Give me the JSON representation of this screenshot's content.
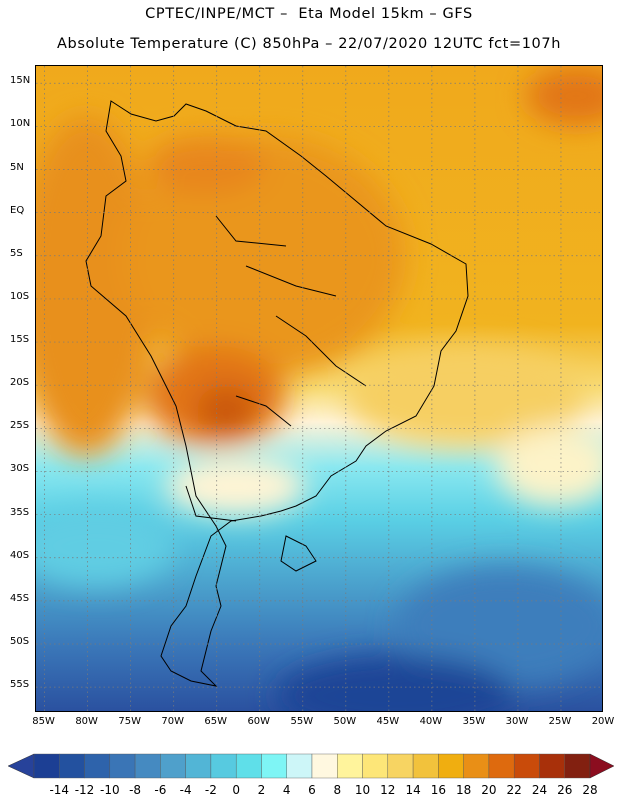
{
  "header": {
    "line1": "CPTEC/INPE/MCT –  Eta Model 15km – GFS",
    "line2": "Absolute Temperature (C) 850hPa – 22/07/2020 12UTC fct=107h"
  },
  "axes": {
    "lat_labels": [
      "15N",
      "10N",
      "5N",
      "EQ",
      "5S",
      "10S",
      "15S",
      "20S",
      "25S",
      "30S",
      "35S",
      "40S",
      "45S",
      "50S",
      "55S"
    ],
    "lat_values": [
      15,
      10,
      5,
      0,
      -5,
      -10,
      -15,
      -20,
      -25,
      -30,
      -35,
      -40,
      -45,
      -50,
      -55
    ],
    "lon_labels": [
      "85W",
      "80W",
      "75W",
      "70W",
      "65W",
      "60W",
      "55W",
      "50W",
      "45W",
      "40W",
      "35W",
      "30W",
      "25W",
      "20W"
    ],
    "lon_values": [
      -85,
      -80,
      -75,
      -70,
      -65,
      -60,
      -55,
      -50,
      -45,
      -40,
      -35,
      -30,
      -25,
      -20
    ],
    "lat_range": [
      -58,
      17
    ],
    "lon_range": [
      -86,
      -20
    ],
    "grid": "dotted"
  },
  "colorbar": {
    "labels": [
      "-14",
      "-12",
      "-10",
      "-8",
      "-6",
      "-4",
      "-2",
      "0",
      "2",
      "4",
      "6",
      "8",
      "10",
      "12",
      "14",
      "16",
      "18",
      "20",
      "22",
      "24",
      "26",
      "28"
    ],
    "colors": [
      "#1c3f94",
      "#23519f",
      "#2e63ab",
      "#3a75b6",
      "#458ac1",
      "#4fa0cb",
      "#52b5d6",
      "#57cae0",
      "#5fdfe9",
      "#7ef5f5",
      "#cdf6f8",
      "#fff8e0",
      "#fff49c",
      "#fde678",
      "#f7d462",
      "#f2c23c",
      "#f0ae10",
      "#e98f16",
      "#de6a0e",
      "#c94b0a",
      "#a8300a",
      "#822010"
    ],
    "under_color": "#27429a",
    "over_color": "#8b0d1f"
  }
}
